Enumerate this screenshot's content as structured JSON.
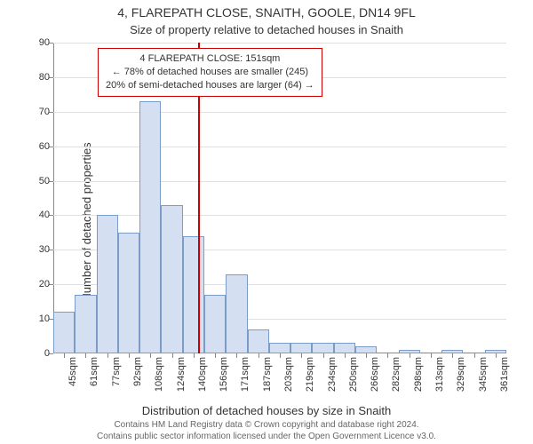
{
  "title_main": "4, FLAREPATH CLOSE, SNAITH, GOOLE, DN14 9FL",
  "title_sub": "Size of property relative to detached houses in Snaith",
  "y_axis_label": "Number of detached properties",
  "x_axis_label": "Distribution of detached houses by size in Snaith",
  "footer_line1": "Contains HM Land Registry data © Crown copyright and database right 2024.",
  "footer_line2": "Contains public sector information licensed under the Open Government Licence v3.0.",
  "info_box": {
    "line1": "4 FLAREPATH CLOSE: 151sqm",
    "line2": "← 78% of detached houses are smaller (245)",
    "line3": "20% of semi-detached houses are larger (64) →"
  },
  "chart": {
    "type": "histogram",
    "ylim": [
      0,
      90
    ],
    "ytick_step": 10,
    "bar_fill": "#d4e0f2",
    "bar_border": "#7a9cc6",
    "grid_color": "#e0e0e0",
    "axis_color": "#888888",
    "marker_color": "#cc0000",
    "background": "#ffffff",
    "marker_value": 151,
    "x_labels": [
      "45sqm",
      "61sqm",
      "77sqm",
      "92sqm",
      "108sqm",
      "124sqm",
      "140sqm",
      "156sqm",
      "171sqm",
      "187sqm",
      "203sqm",
      "219sqm",
      "234sqm",
      "250sqm",
      "266sqm",
      "282sqm",
      "298sqm",
      "313sqm",
      "329sqm",
      "345sqm",
      "361sqm"
    ],
    "values": [
      12,
      17,
      40,
      35,
      73,
      43,
      34,
      17,
      23,
      7,
      3,
      3,
      3,
      3,
      2,
      0,
      1,
      0,
      1,
      0,
      1
    ],
    "label_fontsize": 11,
    "title_fontsize": 14
  }
}
